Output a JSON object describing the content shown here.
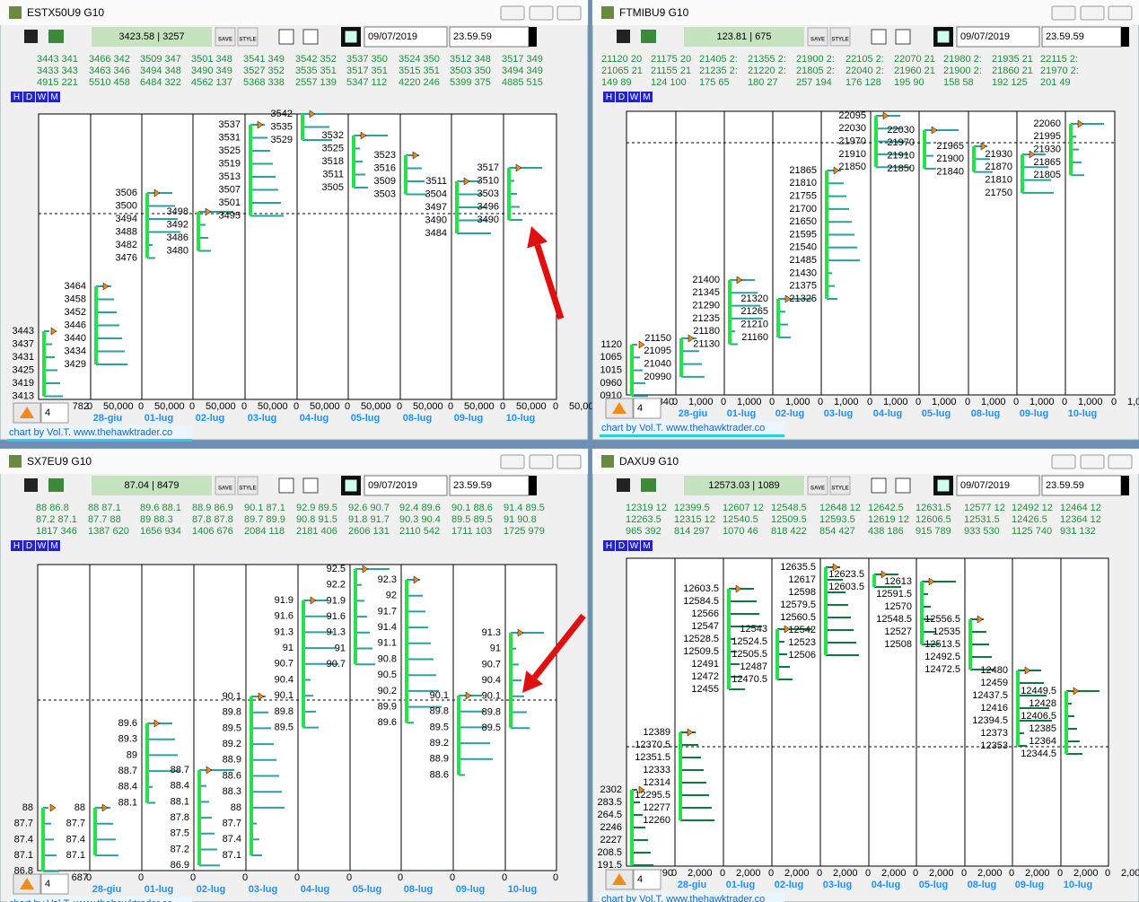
{
  "timeframe_buttons": [
    "H",
    "D",
    "W",
    "M"
  ],
  "toolbar_buttons": [
    "SAVE",
    "STYLE"
  ],
  "windows": [
    {
      "title": "ESTX50U9 G10",
      "price_box": "3423.58 | 3257",
      "date": "09/07/2019",
      "time": "23.59.59",
      "stats": [
        [
          "3443 341",
          "3433 343",
          "4915 221"
        ],
        [
          "3466 342",
          "3463 346",
          "5510 458"
        ],
        [
          "3509 347",
          "3494 348",
          "6484 322"
        ],
        [
          "3501 348",
          "3490 349",
          "4562 137"
        ],
        [
          "3541 349",
          "3527 352",
          "5368 338"
        ],
        [
          "3542 352",
          "3535 351",
          "2557 139"
        ],
        [
          "3537 350",
          "3517 351",
          "5347 112"
        ],
        [
          "3524 350",
          "3515 351",
          "4220 246"
        ],
        [
          "3512 348",
          "3503 350",
          "5399 375"
        ],
        [
          "3517 349",
          "3494 349",
          "4885 515"
        ]
      ],
      "price_labels": [
        [
          "3443",
          "3437",
          "3431",
          "3425",
          "3419",
          "3413"
        ],
        [
          "3464",
          "3458",
          "3452",
          "3446",
          "3440",
          "3434",
          "3429"
        ],
        [
          "3506",
          "3500",
          "3494",
          "3488",
          "3482",
          "3476"
        ],
        [
          "3498",
          "3492",
          "3486",
          "3480"
        ],
        [
          "3537",
          "3531",
          "3525",
          "3519",
          "3513",
          "3507",
          "3501",
          "3495"
        ],
        [
          "3542",
          "3535",
          "3529"
        ],
        [
          "3532",
          "3525",
          "3518",
          "3511",
          "3505"
        ],
        [
          "3523",
          "3516",
          "3509",
          "3503"
        ],
        [
          "3511",
          "3504",
          "3497",
          "3490",
          "3484"
        ],
        [
          "3517",
          "3510",
          "3503",
          "3496",
          "3490"
        ]
      ],
      "volume_first": "782",
      "volume_ticks": [
        "0",
        "50,000"
      ],
      "dates": [
        "28-giu",
        "01-lug",
        "02-lug",
        "03-lug",
        "04-lug",
        "05-lug",
        "08-lug",
        "09-lug",
        "10-lug"
      ],
      "period": "4",
      "footer": "chart by Vol.T. www.thehawktrader.co"
    },
    {
      "title": "FTMIBU9 G10",
      "price_box": "123.81 | 675",
      "date": "09/07/2019",
      "time": "23.59.59",
      "stats": [
        [
          "21120 20",
          "21065 21",
          "149 89"
        ],
        [
          "21175 20",
          "21155 21",
          "124 100"
        ],
        [
          "21405 2:",
          "21235 2:",
          "175 65"
        ],
        [
          "21355 2:",
          "21220 2:",
          "180 27"
        ],
        [
          "21900 2:",
          "21805 2:",
          "257 194"
        ],
        [
          "22105 2:",
          "22040 2:",
          "176 128"
        ],
        [
          "22070 21",
          "21960 21",
          "195 90"
        ],
        [
          "21980 2:",
          "21900 2:",
          "158 58"
        ],
        [
          "21935 21",
          "21860 21",
          "192 125"
        ],
        [
          "22115 2:",
          "21970 2:",
          "201 49"
        ]
      ],
      "price_labels": [
        [
          "1120",
          "1065",
          "1015",
          "0960",
          "0910"
        ],
        [
          "21150",
          "21095",
          "21040",
          "20990"
        ],
        [
          "21400",
          "21345",
          "21290",
          "21235",
          "21180",
          "21130"
        ],
        [
          "21320",
          "21265",
          "21210",
          "21160"
        ],
        [
          "21865",
          "21810",
          "21755",
          "21700",
          "21650",
          "21595",
          "21540",
          "21485",
          "21430",
          "21375",
          "21325"
        ],
        [
          "22095",
          "22030",
          "21970",
          "21910",
          "21850"
        ],
        [
          "22030",
          "21970",
          "21910",
          "21850"
        ],
        [
          "21965",
          "21900",
          "21840"
        ],
        [
          "21930",
          "21870",
          "21810",
          "21750"
        ],
        [
          "22060",
          "21995",
          "21930",
          "21865",
          "21805"
        ]
      ],
      "volume_first": "840",
      "volume_ticks": [
        "0",
        "1,000"
      ],
      "dates": [
        "28-giu",
        "01-lug",
        "02-lug",
        "03-lug",
        "04-lug",
        "05-lug",
        "08-lug",
        "09-lug",
        "10-lug"
      ],
      "period": "4",
      "footer": "chart by Vol.T. www.thehawktrader.co"
    },
    {
      "title": "SX7EU9 G10",
      "price_box": "87.04 | 8479",
      "date": "09/07/2019",
      "time": "23.59.59",
      "stats": [
        [
          "88 86.8",
          "87.2 87.1",
          "1817 346"
        ],
        [
          "88 87.1",
          "87.7 88",
          "1387 620"
        ],
        [
          "89.6 88.1",
          "89 88.3",
          "1656 934"
        ],
        [
          "88.9 86.9",
          "87.8 87.8",
          "1406 676"
        ],
        [
          "90.1 87.1",
          "89.7 89.9",
          "2084 118"
        ],
        [
          "92.9 89.5",
          "90.8 91.5",
          "2181 406"
        ],
        [
          "92.6 90.7",
          "91.8 91.7",
          "2606 131"
        ],
        [
          "92.4 89.6",
          "90.3 90.4",
          "2110 542"
        ],
        [
          "90.1 88.6",
          "89.5 89.5",
          "1711 103"
        ],
        [
          "91.4 89.5",
          "91 90.8",
          "1725 979"
        ]
      ],
      "price_labels": [
        [
          "88",
          "87.7",
          "87.4",
          "87.1",
          "86.8"
        ],
        [
          "88",
          "87.7",
          "87.4",
          "87.1"
        ],
        [
          "89.6",
          "89.3",
          "89",
          "88.7",
          "88.4",
          "88.1"
        ],
        [
          "88.7",
          "88.4",
          "88.1",
          "87.8",
          "87.5",
          "87.2",
          "86.9"
        ],
        [
          "90.1",
          "89.8",
          "89.5",
          "89.2",
          "88.9",
          "88.6",
          "88.3",
          "88",
          "87.7",
          "87.4",
          "87.1"
        ],
        [
          "91.9",
          "91.6",
          "91.3",
          "91",
          "90.7",
          "90.4",
          "90.1",
          "89.8",
          "89.5"
        ],
        [
          "92.5",
          "92.2",
          "91.9",
          "91.6",
          "91.3",
          "91",
          "90.7"
        ],
        [
          "92.3",
          "92",
          "91.7",
          "91.4",
          "91.1",
          "90.8",
          "90.5",
          "90.2",
          "89.9",
          "89.6"
        ],
        [
          "90.1",
          "89.8",
          "89.5",
          "89.2",
          "88.9",
          "88.6"
        ],
        [
          "91.3",
          "91",
          "90.7",
          "90.4",
          "90.1",
          "89.8",
          "89.5"
        ]
      ],
      "volume_first": "687",
      "volume_ticks": [
        "0"
      ],
      "dates": [
        "28-giu",
        "01-lug",
        "02-lug",
        "03-lug",
        "04-lug",
        "05-lug",
        "08-lug",
        "09-lug",
        "10-lug"
      ],
      "period": "4",
      "footer": "chart by Vol.T. www.thehawktrader.co"
    },
    {
      "title": "DAXU9 G10",
      "price_box": "12573.03 | 1089",
      "date": "09/07/2019",
      "time": "23.59.59",
      "stats": [
        [
          "12319 12",
          "12263.5",
          "965 392"
        ],
        [
          "12399.5",
          "12315 12",
          "814 297"
        ],
        [
          "12607 12",
          "12540.5",
          "1070 46"
        ],
        [
          "12548.5",
          "12509.5",
          "818 422"
        ],
        [
          "12648 12",
          "12593.5",
          "854 427"
        ],
        [
          "12642.5",
          "12619 12",
          "438 186"
        ],
        [
          "12631.5",
          "12606.5",
          "915 789"
        ],
        [
          "12577 12",
          "12531.5",
          "933 530"
        ],
        [
          "12492 12",
          "12426.5",
          "1125 740"
        ],
        [
          "12464 12",
          "12364 12",
          "931 132"
        ]
      ],
      "price_labels": [
        [
          "2302",
          "283.5",
          "264.5",
          "2246",
          "2227",
          "208.5",
          "191.5"
        ],
        [
          "12389",
          "12370.5",
          "12351.5",
          "12333",
          "12314",
          "12295.5",
          "12277",
          "12260"
        ],
        [
          "12603.5",
          "12584.5",
          "12566",
          "12547",
          "12528.5",
          "12509.5",
          "12491",
          "12472",
          "12455"
        ],
        [
          "12543",
          "12524.5",
          "12505.5",
          "12487",
          "12470.5"
        ],
        [
          "12635.5",
          "12617",
          "12598",
          "12579.5",
          "12560.5",
          "12542",
          "12523",
          "12506"
        ],
        [
          "12623.5",
          "12603.5"
        ],
        [
          "12613",
          "12591.5",
          "12570",
          "12548.5",
          "12527",
          "12508"
        ],
        [
          "12556.5",
          "12535",
          "12513.5",
          "12492.5",
          "12472.5"
        ],
        [
          "12480",
          "12459",
          "12437.5",
          "12416",
          "12394.5",
          "12373",
          "12353"
        ],
        [
          "12449.5",
          "12428",
          "12406.5",
          "12385",
          "12364",
          "12344.5"
        ]
      ],
      "volume_first": "790",
      "volume_ticks": [
        "0",
        "2,000"
      ],
      "dates": [
        "28-giu",
        "01-lug",
        "02-lug",
        "03-lug",
        "04-lug",
        "05-lug",
        "08-lug",
        "09-lug",
        "10-lug"
      ],
      "period": "4",
      "footer": "chart by Vol.T. www.thehawktrader.co"
    }
  ]
}
